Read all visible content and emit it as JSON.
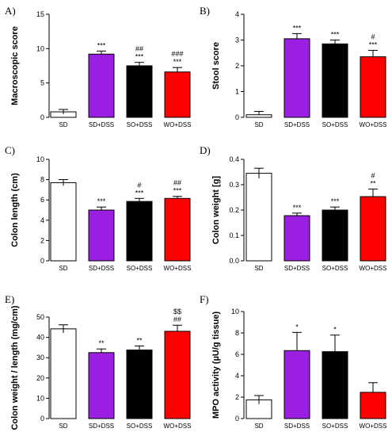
{
  "colors": {
    "SD": "#ffffff",
    "SD+DSS": "#9b1fe0",
    "SO+DSS": "#000000",
    "WO+DSS": "#ff0000"
  },
  "chart_data": [
    {
      "panel": "A)",
      "type": "bar",
      "ylabel": "Macroscopic score",
      "categories": [
        "SD",
        "SD+DSS",
        "SO+DSS",
        "WO+DSS"
      ],
      "values": [
        0.8,
        9.2,
        7.5,
        6.6
      ],
      "errors": [
        0.35,
        0.45,
        0.5,
        0.65
      ],
      "significance": [
        [],
        [
          "***"
        ],
        [
          "##",
          "***"
        ],
        [
          "###",
          "***"
        ]
      ],
      "ylim": [
        0,
        15
      ],
      "yticks": [
        "0",
        "5",
        "10",
        "15"
      ],
      "grid": false,
      "legend": "none"
    },
    {
      "panel": "B)",
      "type": "bar",
      "ylabel": "Stool score",
      "categories": [
        "SD",
        "SD+DSS",
        "SO+DSS",
        "WO+DSS"
      ],
      "values": [
        0.1,
        3.05,
        2.85,
        2.35
      ],
      "errors": [
        0.13,
        0.2,
        0.15,
        0.25
      ],
      "significance": [
        [],
        [
          "***"
        ],
        [
          "***"
        ],
        [
          "#",
          "***"
        ]
      ],
      "ylim": [
        0,
        4
      ],
      "yticks": [
        "0",
        "1",
        "2",
        "3",
        "4"
      ],
      "grid": false,
      "legend": "none"
    },
    {
      "panel": "C)",
      "type": "bar",
      "ylabel": "Colon length (cm)",
      "categories": [
        "SD",
        "SD+DSS",
        "SO+DSS",
        "WO+DSS"
      ],
      "values": [
        7.7,
        5.0,
        5.85,
        6.15
      ],
      "errors": [
        0.3,
        0.3,
        0.3,
        0.2
      ],
      "significance": [
        [],
        [
          "***"
        ],
        [
          "#",
          "***"
        ],
        [
          "##",
          "***"
        ]
      ],
      "ylim": [
        0,
        10
      ],
      "yticks": [
        "0",
        "2",
        "4",
        "6",
        "8",
        "10"
      ],
      "grid": false,
      "legend": "none"
    },
    {
      "panel": "D)",
      "type": "bar",
      "ylabel": "Colon weight [g]",
      "categories": [
        "SD",
        "SD+DSS",
        "SO+DSS",
        "WO+DSS"
      ],
      "values": [
        0.345,
        0.178,
        0.2,
        0.253
      ],
      "errors": [
        0.02,
        0.01,
        0.012,
        0.03
      ],
      "significance": [
        [],
        [
          "***"
        ],
        [
          "***"
        ],
        [
          "#",
          "**"
        ]
      ],
      "ylim": [
        0,
        0.4
      ],
      "yticks": [
        "0.0",
        "0.1",
        "0.2",
        "0.3",
        "0.4"
      ],
      "grid": false,
      "legend": "none"
    },
    {
      "panel": "E)",
      "type": "bar",
      "ylabel": "Colon weight / length (mg/cm)",
      "categories": [
        "SD",
        "SD+DSS",
        "SO+DSS",
        "WO+DSS"
      ],
      "values": [
        44.2,
        32.5,
        33.8,
        43.0
      ],
      "errors": [
        2.0,
        1.8,
        2.0,
        3.0
      ],
      "significance": [
        [],
        [
          "**"
        ],
        [
          "**"
        ],
        [
          "$$",
          "##"
        ]
      ],
      "ylim": [
        0,
        50
      ],
      "yticks": [
        "0",
        "10",
        "20",
        "30",
        "40",
        "50"
      ],
      "grid": false,
      "legend": "none"
    },
    {
      "panel": "F)",
      "type": "bar",
      "ylabel": "MPO activity (µU/g tissue)",
      "categories": [
        "SD",
        "SD+DSS",
        "SO+DSS",
        "WO+DSS"
      ],
      "values": [
        1.75,
        6.35,
        6.25,
        2.45
      ],
      "errors": [
        0.4,
        1.7,
        1.55,
        0.9
      ],
      "significance": [
        [],
        [
          "*"
        ],
        [
          "*"
        ],
        []
      ],
      "ylim": [
        0,
        10
      ],
      "yticks": [
        "0",
        "2",
        "4",
        "6",
        "8",
        "10"
      ],
      "grid": false,
      "legend": "none"
    }
  ]
}
